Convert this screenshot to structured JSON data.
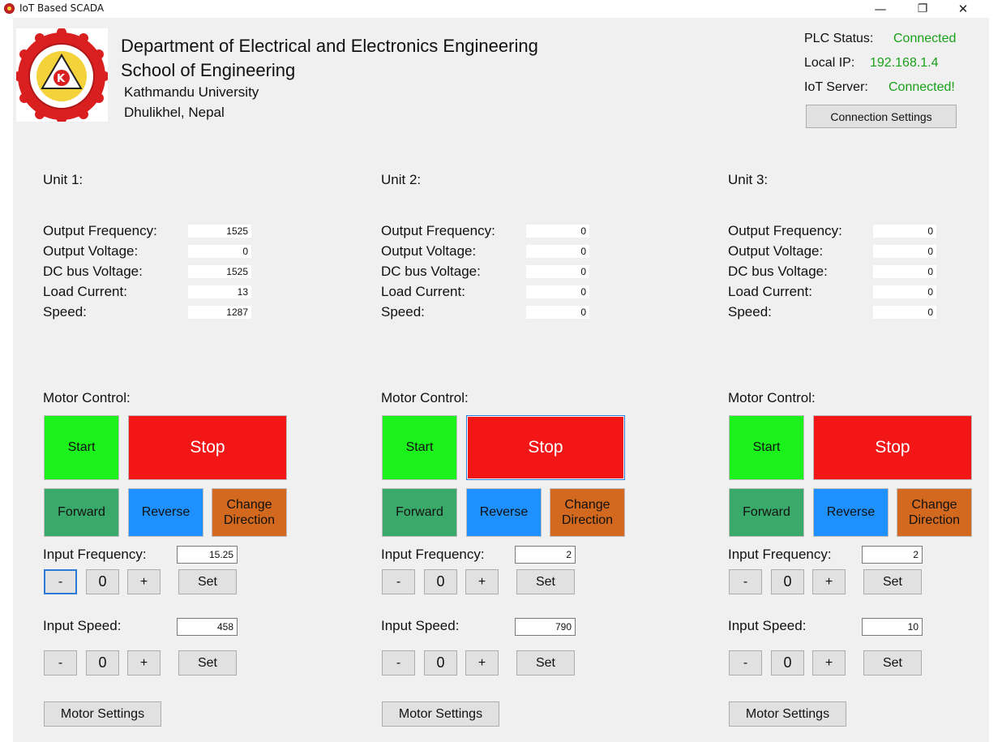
{
  "window": {
    "title": "IoT Based SCADA",
    "minimize_glyph": "—",
    "restore_glyph": "❐",
    "close_glyph": "✕"
  },
  "header": {
    "line1": "Department of Electrical and Electronics Engineering",
    "line2": "School of Engineering",
    "line3": "Kathmandu University",
    "line4": "Dhulikhel, Nepal",
    "logo_icon": "kathmandu-university-logo"
  },
  "status": {
    "plc_label": "PLC Status:",
    "plc_value": "Connected",
    "ip_label": "Local IP:",
    "ip_value": "192.168.1.4",
    "iot_label": "IoT Server:",
    "iot_value": "Connected!",
    "connection_settings_label": "Connection Settings",
    "status_color": "#1aa11a"
  },
  "labels": {
    "output_frequency": "Output Frequency:",
    "output_voltage": "Output Voltage:",
    "dc_bus_voltage": "DC bus Voltage:",
    "load_current": "Load Current:",
    "speed": "Speed:",
    "motor_control": "Motor Control:",
    "start": "Start",
    "stop": "Stop",
    "forward": "Forward",
    "reverse": "Reverse",
    "change_direction": "Change Direction",
    "input_frequency": "Input Frequency:",
    "input_speed": "Input Speed:",
    "minus": "-",
    "zero": "0",
    "plus": "+",
    "set": "Set",
    "motor_settings": "Motor Settings"
  },
  "colors": {
    "start": "#1bf21b",
    "stop": "#f21616",
    "forward": "#3aaa6a",
    "reverse": "#1e90ff",
    "change_direction": "#d2691e"
  },
  "units": [
    {
      "title": "Unit 1:",
      "output_frequency": "1525",
      "output_voltage": "0",
      "dc_bus_voltage": "1525",
      "load_current": "13",
      "speed": "1287",
      "input_frequency": "15.25",
      "input_speed": "458"
    },
    {
      "title": "Unit 2:",
      "output_frequency": "0",
      "output_voltage": "0",
      "dc_bus_voltage": "0",
      "load_current": "0",
      "speed": "0",
      "input_frequency": "2",
      "input_speed": "790"
    },
    {
      "title": "Unit 3:",
      "output_frequency": "0",
      "output_voltage": "0",
      "dc_bus_voltage": "0",
      "load_current": "0",
      "speed": "0",
      "input_frequency": "2",
      "input_speed": "10"
    }
  ]
}
